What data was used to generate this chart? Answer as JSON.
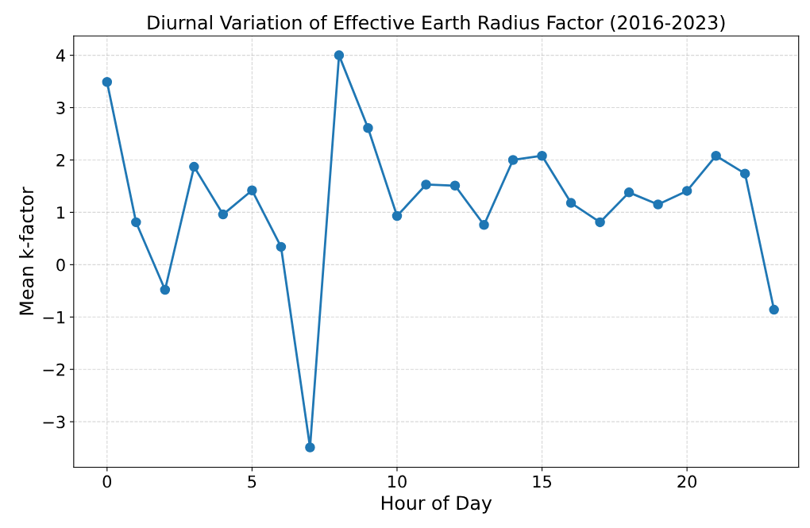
{
  "chart_data": {
    "type": "line",
    "title": "Diurnal Variation of Effective Earth Radius Factor (2016-2023)",
    "xlabel": "Hour of Day",
    "ylabel": "Mean k-factor",
    "x": [
      0,
      1,
      2,
      3,
      4,
      5,
      6,
      7,
      8,
      9,
      10,
      11,
      12,
      13,
      14,
      15,
      16,
      17,
      18,
      19,
      20,
      21,
      22,
      23
    ],
    "series": [
      {
        "color": "#1f77b4",
        "values": [
          3.49,
          0.81,
          -0.48,
          1.87,
          0.96,
          1.42,
          0.34,
          -3.49,
          4.0,
          2.61,
          0.93,
          1.53,
          1.51,
          0.76,
          2.0,
          2.08,
          1.18,
          0.81,
          1.38,
          1.15,
          1.41,
          2.08,
          1.74,
          -0.86
        ]
      }
    ],
    "xlim": [
      -1.15,
      23.85
    ],
    "ylim": [
      -3.87,
      4.37
    ],
    "xticks": [
      0,
      5,
      10,
      15,
      20
    ],
    "yticks": [
      -3,
      -2,
      -1,
      0,
      1,
      2,
      3,
      4
    ],
    "grid": true,
    "marker": "circle",
    "line_style": "solid"
  }
}
